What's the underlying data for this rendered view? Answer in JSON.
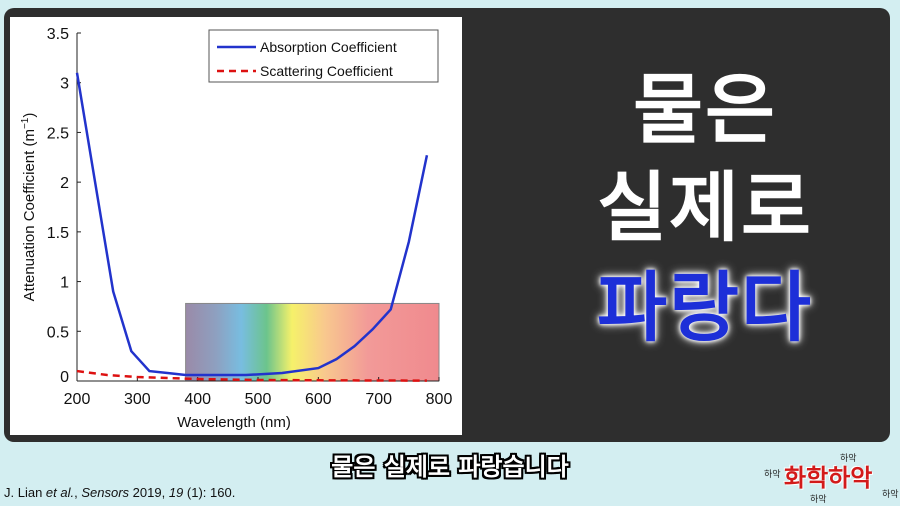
{
  "headline": {
    "line1": "물은",
    "line2": "실제로",
    "line3": "파랑다"
  },
  "subtitle": "물은 실제로 파랑습니다",
  "citation": {
    "authors": "J. Lian ",
    "etal": "et al.",
    "comma": ", ",
    "journal": "Sensors",
    "year": " 2019, ",
    "volume": "19",
    "rest": " (1): 160."
  },
  "logo": {
    "main": "화학하악",
    "small": "하악"
  },
  "colors": {
    "background": "#d3eef1",
    "panel": "#2e2e2e",
    "absorption": "#2233cc",
    "scattering": "#dd1111",
    "headline_blue": "#1d2fd8"
  },
  "chart_data": {
    "type": "line",
    "xlabel": "Wavelength (nm)",
    "ylabel": "Attenuation Coefficient (m",
    "ylabel_sup": "−1",
    "ylabel_end": ")",
    "xlim": [
      200,
      800
    ],
    "ylim": [
      0,
      3.5
    ],
    "xticks": [
      "200",
      "300",
      "400",
      "500",
      "600",
      "700",
      "800"
    ],
    "yticks": [
      "0",
      "0.5",
      "1",
      "1.5",
      "2",
      "2.5",
      "3",
      "3.5"
    ],
    "legend_position": "top-right",
    "grid": false,
    "visible_spectrum_band": {
      "x": [
        380,
        800
      ],
      "y_top": 0.78
    },
    "series": [
      {
        "name": "Absorption Coefficient",
        "style": "solid",
        "x": [
          200,
          230,
          260,
          290,
          320,
          350,
          380,
          420,
          480,
          540,
          600,
          630,
          660,
          690,
          720,
          750,
          780
        ],
        "y": [
          3.1,
          2.0,
          0.9,
          0.3,
          0.1,
          0.08,
          0.06,
          0.06,
          0.06,
          0.08,
          0.13,
          0.22,
          0.35,
          0.52,
          0.72,
          1.4,
          2.27
        ]
      },
      {
        "name": "Scattering Coefficient",
        "style": "dashed",
        "x": [
          200,
          250,
          300,
          350,
          400,
          500,
          600,
          700,
          780
        ],
        "y": [
          0.1,
          0.06,
          0.04,
          0.03,
          0.02,
          0.01,
          0.007,
          0.005,
          0.004
        ]
      }
    ]
  }
}
